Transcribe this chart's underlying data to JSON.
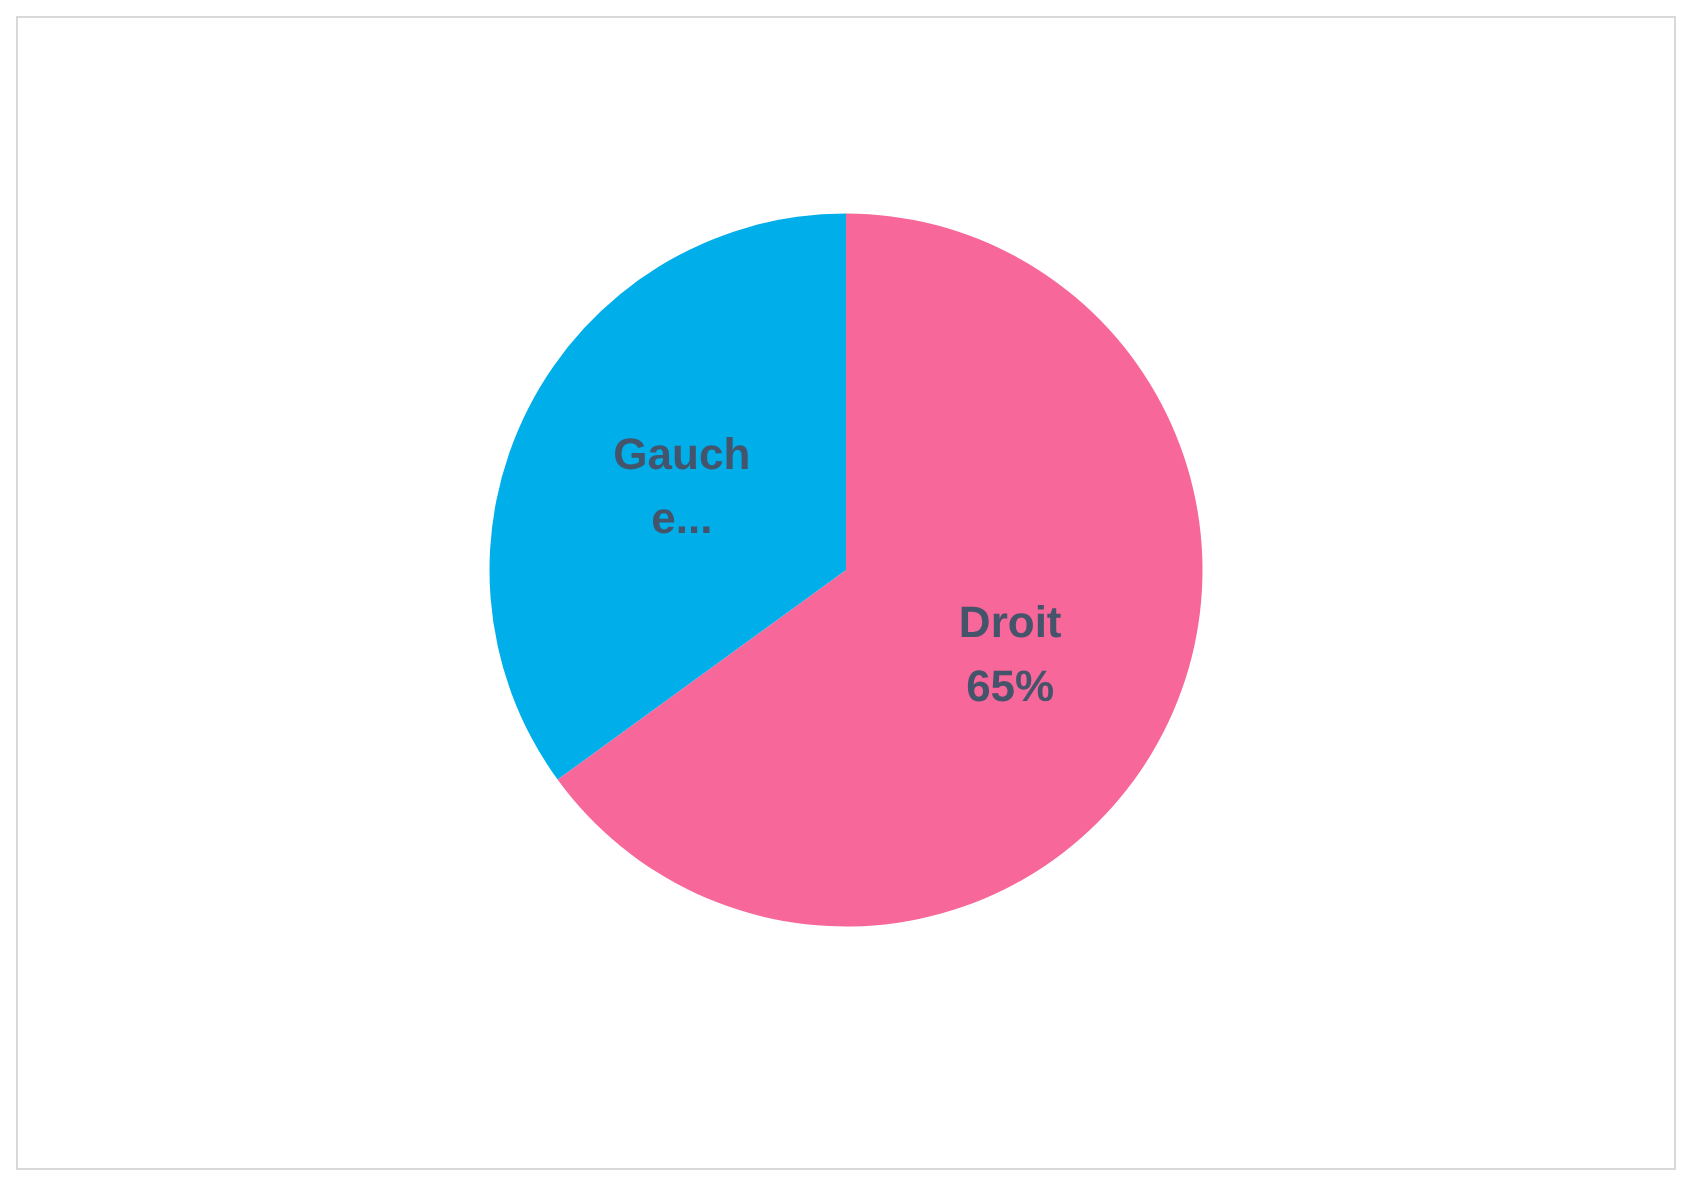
{
  "chart_data": {
    "type": "pie",
    "categories": [
      "Droit",
      "Gauche..."
    ],
    "values": [
      65,
      35
    ],
    "colors": [
      "#f76799",
      "#00aeea"
    ],
    "value_labels": [
      "65%",
      null
    ],
    "legend": false
  }
}
